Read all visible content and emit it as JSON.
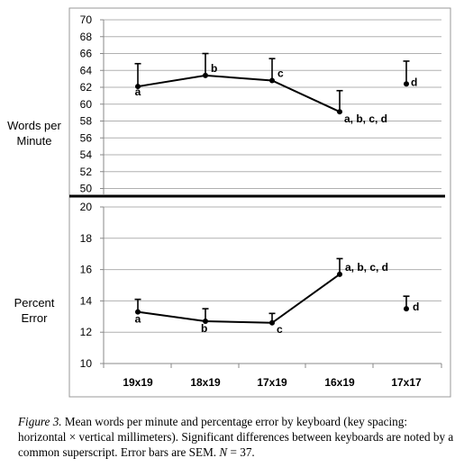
{
  "chart_data": [
    {
      "type": "line",
      "ylabel": [
        "Words per",
        "Minute"
      ],
      "categories": [
        "19x19",
        "18x19",
        "17x19",
        "16x19",
        "17x17"
      ],
      "ylim": [
        49,
        70
      ],
      "yticks": [
        50,
        52,
        54,
        56,
        58,
        60,
        62,
        64,
        66,
        68,
        70
      ],
      "grid": true,
      "values": [
        62.1,
        63.4,
        62.8,
        59.1,
        62.4
      ],
      "error_upper": [
        64.8,
        66.0,
        65.4,
        61.6,
        65.1
      ],
      "connected": [
        true,
        true,
        true,
        true,
        false
      ],
      "labels": [
        "a",
        "b",
        "c",
        "a, b, c, d",
        "d"
      ]
    },
    {
      "type": "line",
      "ylabel": [
        "Percent",
        "Error"
      ],
      "categories": [
        "19x19",
        "18x19",
        "17x19",
        "16x19",
        "17x17"
      ],
      "ylim": [
        10,
        20
      ],
      "yticks": [
        10,
        12,
        14,
        16,
        18,
        20
      ],
      "grid": true,
      "values": [
        13.3,
        12.7,
        12.6,
        15.7,
        13.5
      ],
      "error_upper": [
        14.1,
        13.5,
        13.2,
        16.7,
        14.3
      ],
      "connected": [
        true,
        true,
        true,
        true,
        false
      ],
      "labels": [
        "a",
        "b",
        "c",
        "a, b, c, d",
        "d"
      ]
    }
  ],
  "caption": {
    "figure_label": "Figure 3.",
    "text": " Mean words per minute and percentage error by keyboard (key spacing: horizontal × vertical millimeters). Significant differences between keyboards are noted by a common superscript. Error bars are SEM. ",
    "n_label": "N",
    "n_value": " = 37."
  }
}
